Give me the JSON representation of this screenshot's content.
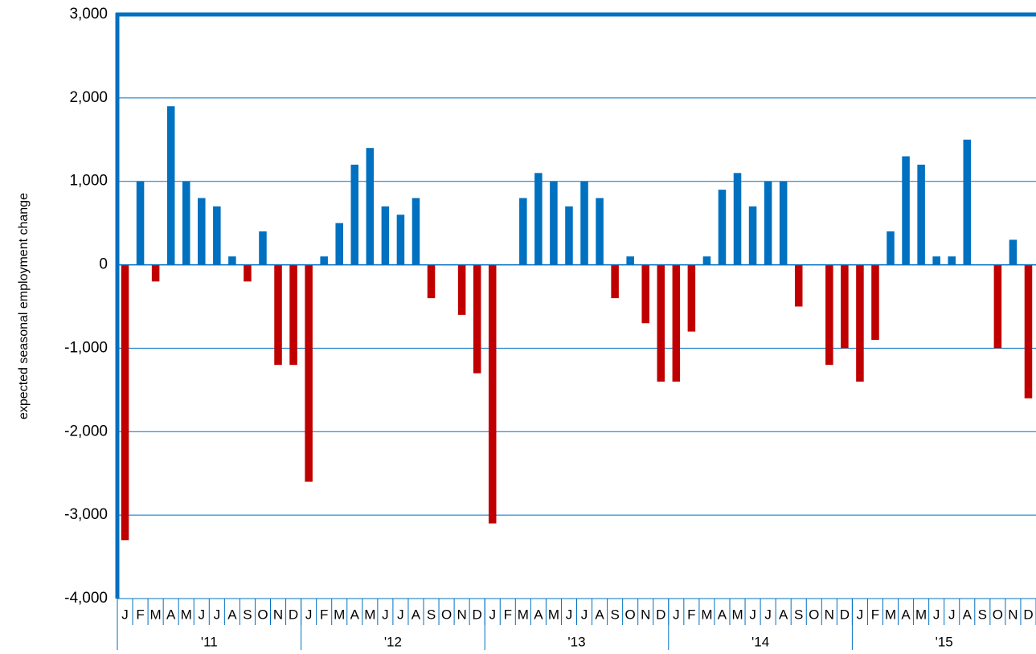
{
  "chart_data": {
    "type": "bar",
    "y_label": "expected seasonal employment change",
    "categories": [
      "J",
      "F",
      "M",
      "A",
      "M",
      "J",
      "J",
      "A",
      "S",
      "O",
      "N",
      "D",
      "J",
      "F",
      "M",
      "A",
      "M",
      "J",
      "J",
      "A",
      "S",
      "O",
      "N",
      "D",
      "J",
      "F",
      "M",
      "A",
      "M",
      "J",
      "J",
      "A",
      "S",
      "O",
      "N",
      "D",
      "J",
      "F",
      "M",
      "A",
      "M",
      "J",
      "J",
      "A",
      "S",
      "O",
      "N",
      "D",
      "J",
      "F",
      "M",
      "A",
      "M",
      "J",
      "J",
      "A",
      "S",
      "O",
      "N",
      "D"
    ],
    "groups": [
      "'11",
      "'12",
      "'13",
      "'14",
      "'15"
    ],
    "values": [
      -3300,
      1000,
      -200,
      1900,
      1000,
      800,
      700,
      100,
      -200,
      400,
      -1200,
      -1200,
      -2600,
      100,
      500,
      1200,
      1400,
      700,
      600,
      800,
      -400,
      0,
      -600,
      -1300,
      -3100,
      0,
      800,
      1100,
      1000,
      700,
      1000,
      800,
      -400,
      100,
      -700,
      -1400,
      -1400,
      -800,
      100,
      900,
      1100,
      700,
      1000,
      1000,
      -500,
      0,
      -1200,
      -1000,
      -1400,
      -900,
      400,
      1300,
      1200,
      100,
      100,
      1500,
      0,
      -1000,
      300,
      -1600
    ],
    "color_positive": "#0070c0",
    "color_negative": "#c00000",
    "ylim": [
      -4000,
      3000
    ],
    "yticks": [
      {
        "value": -4000,
        "label": "-4,000"
      },
      {
        "value": -3000,
        "label": "-3,000"
      },
      {
        "value": -2000,
        "label": "-2,000"
      },
      {
        "value": -1000,
        "label": "-1,000"
      },
      0,
      {
        "value": 1000,
        "label": "1,000"
      },
      {
        "value": 2000,
        "label": "2,000"
      },
      {
        "value": 3000,
        "label": "3,000"
      }
    ],
    "grid": true
  }
}
